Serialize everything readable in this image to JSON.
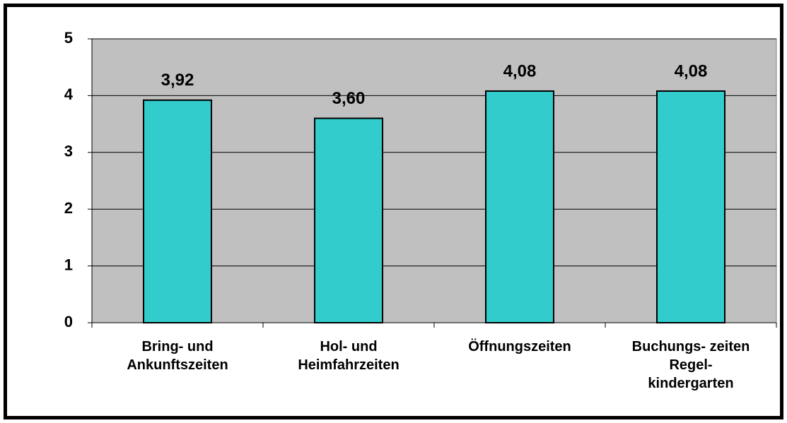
{
  "chart_data": {
    "type": "bar",
    "categories": [
      "Bring- und\nAnkunftszeiten",
      "Hol- und\nHeimfahrzeiten",
      "Öffnungszeiten",
      "Buchungs- zeiten\nRegel-\nkindergarten"
    ],
    "values": [
      3.92,
      3.6,
      4.08,
      4.08
    ],
    "value_labels": [
      "3,92",
      "3,60",
      "4,08",
      "4,08"
    ],
    "color": "#33cccc",
    "ylim": [
      0,
      5
    ],
    "yticks": [
      0,
      1,
      2,
      3,
      4,
      5
    ],
    "grid": true
  }
}
